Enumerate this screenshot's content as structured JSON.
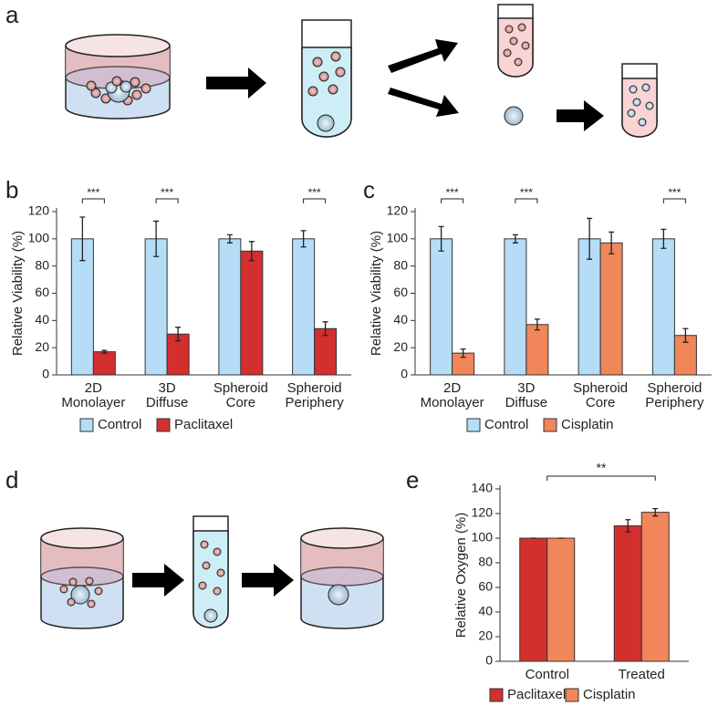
{
  "panel_labels": [
    "a",
    "b",
    "c",
    "d",
    "e"
  ],
  "chart_data": [
    {
      "type": "bar",
      "y_label": "Relative Viability (%)",
      "categories": [
        [
          "2D",
          "Monolayer"
        ],
        [
          "3D",
          "Diffuse"
        ],
        [
          "Spheroid",
          "Core"
        ],
        [
          "Spheroid",
          "Periphery"
        ]
      ],
      "series": [
        {
          "name": "Control",
          "color": "#b5ddf8",
          "values": [
            100,
            100,
            100,
            100
          ],
          "errors": [
            16,
            13,
            3,
            6
          ]
        },
        {
          "name": "Paclitaxel",
          "color": "#d32f2f",
          "values": [
            17,
            30,
            91,
            34
          ],
          "errors": [
            1,
            5,
            7,
            5
          ]
        }
      ],
      "significance": [
        "***",
        "***",
        null,
        "***"
      ],
      "ylim": [
        0,
        120
      ],
      "yticks": [
        0,
        20,
        40,
        60,
        80,
        100,
        120
      ]
    },
    {
      "type": "bar",
      "y_label": "Relative Viability (%)",
      "categories": [
        [
          "2D",
          "Monolayer"
        ],
        [
          "3D",
          "Diffuse"
        ],
        [
          "Spheroid",
          "Core"
        ],
        [
          "Spheroid",
          "Periphery"
        ]
      ],
      "series": [
        {
          "name": "Control",
          "color": "#b5ddf8",
          "values": [
            100,
            100,
            100,
            100
          ],
          "errors": [
            9,
            3,
            15,
            7
          ]
        },
        {
          "name": "Cisplatin",
          "color": "#f0865a",
          "values": [
            16,
            37,
            97,
            29
          ],
          "errors": [
            3,
            4,
            8,
            5
          ]
        }
      ],
      "significance": [
        "***",
        "***",
        null,
        "***"
      ],
      "ylim": [
        0,
        120
      ],
      "yticks": [
        0,
        20,
        40,
        60,
        80,
        100,
        120
      ]
    },
    {
      "type": "bar",
      "y_label": "Relative Oxygen (%)",
      "categories": [
        [
          "Control"
        ],
        [
          "Treated"
        ]
      ],
      "series": [
        {
          "name": "Paclitaxel",
          "color": "#d32f2f",
          "values": [
            100,
            110
          ],
          "errors": [
            0,
            5
          ]
        },
        {
          "name": "Cisplatin",
          "color": "#f0865a",
          "values": [
            100,
            121
          ],
          "errors": [
            0,
            3
          ]
        }
      ],
      "bracket_label": "**",
      "ylim": [
        0,
        140
      ],
      "yticks": [
        0,
        20,
        40,
        60,
        80,
        100,
        120,
        140
      ]
    }
  ]
}
